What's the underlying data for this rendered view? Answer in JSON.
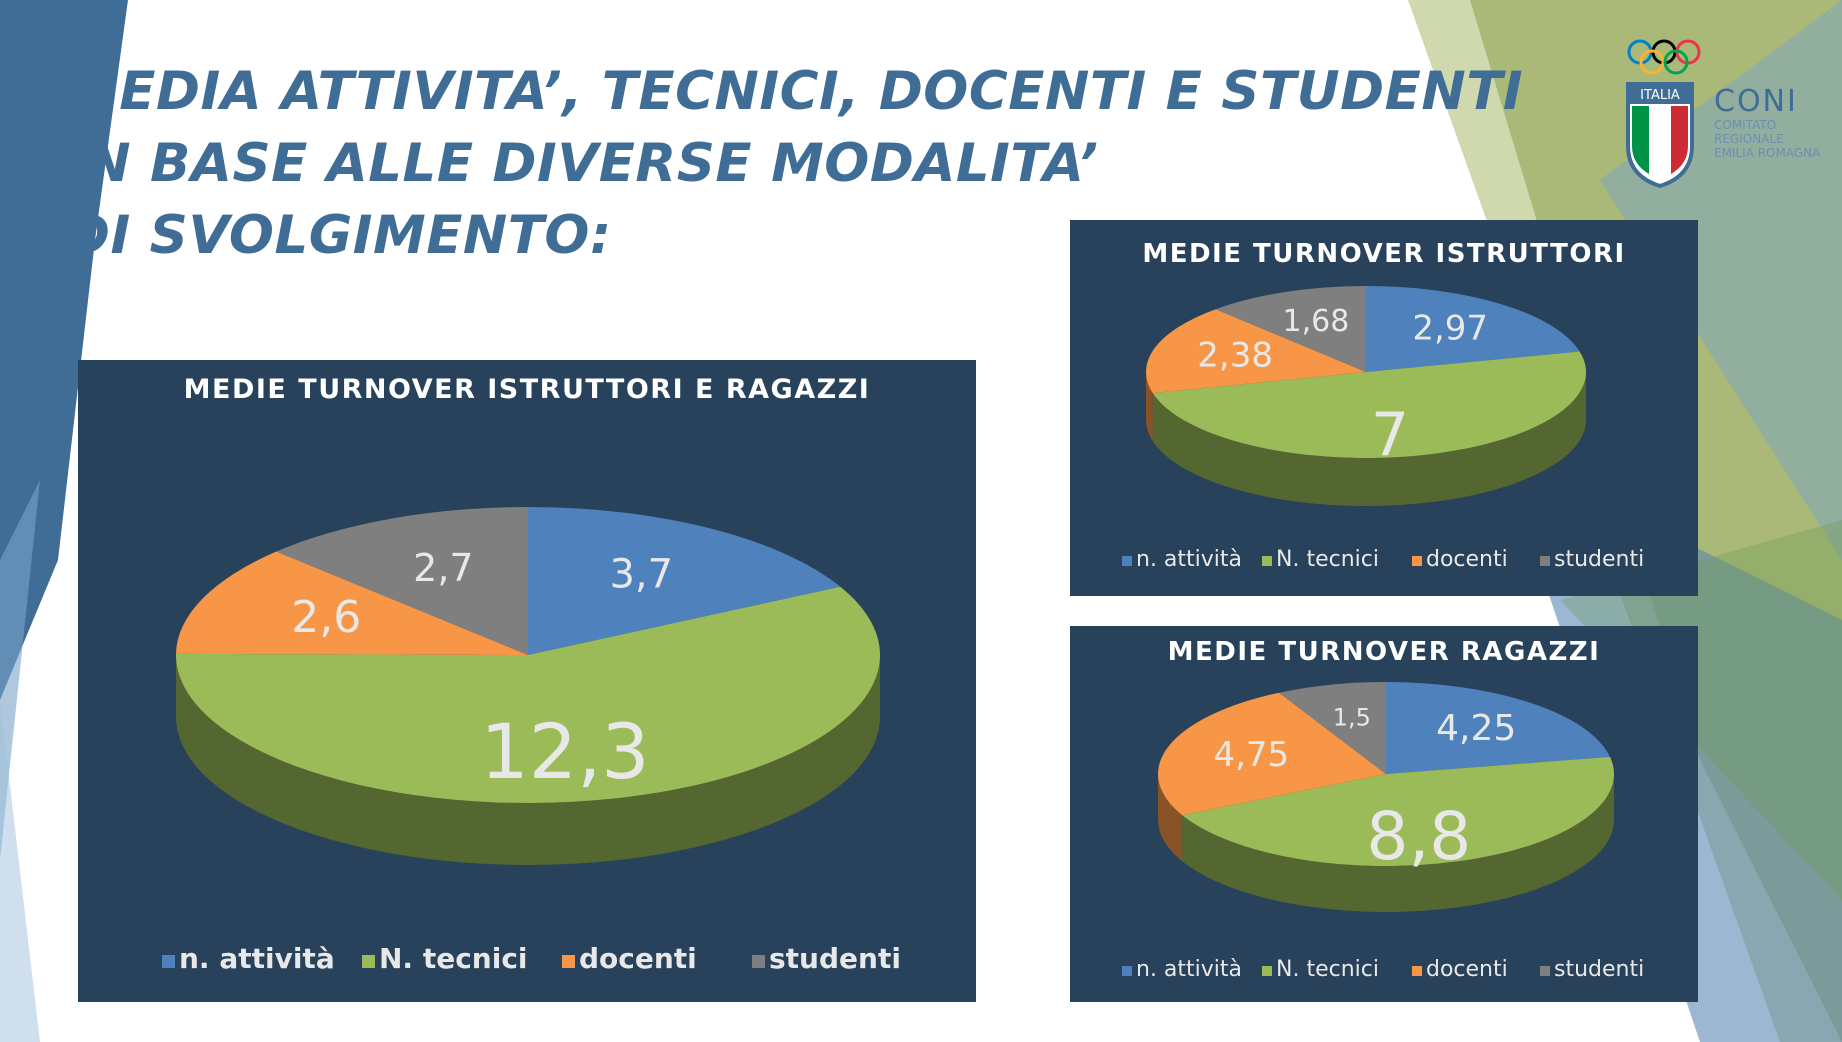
{
  "title_lines": [
    "MEDIA ATTIVITA’, TECNICI, DOCENTI E STUDENTI",
    "IN BASE ALLE DIVERSE MODALITA’",
    "DI SVOLGIMENTO:"
  ],
  "logo": {
    "badge": "ITALIA",
    "name": "CONI",
    "sub": [
      "COMITATO",
      "REGIONALE",
      "EMILIA ROMAGNA"
    ]
  },
  "colors": {
    "panel": "#27425a",
    "title": "#3f6d96",
    "attivita": "#4f81bd",
    "tecnici": "#9bbb59",
    "docenti": "#f79646",
    "studenti": "#7f7f7f"
  },
  "chart_data": [
    {
      "type": "pie",
      "title": "MEDIE TURNOVER ISTRUTTORI E RAGAZZI",
      "categories": [
        "n. attività",
        "N. tecnici",
        "docenti",
        "studenti"
      ],
      "values": [
        3.7,
        12.3,
        2.6,
        2.7
      ],
      "data_labels": [
        "3,7",
        "12,3",
        "2,6",
        "2,7"
      ],
      "legend": "bottom"
    },
    {
      "type": "pie",
      "title": "MEDIE TURNOVER ISTRUTTORI",
      "categories": [
        "n. attività",
        "N. tecnici",
        "docenti",
        "studenti"
      ],
      "values": [
        2.97,
        7,
        2.38,
        1.68
      ],
      "data_labels": [
        "2,97",
        "7",
        "2,38",
        "1,68"
      ],
      "legend": "bottom"
    },
    {
      "type": "pie",
      "title": "MEDIE TURNOVER RAGAZZI",
      "categories": [
        "n. attività",
        "N. tecnici",
        "docenti",
        "studenti"
      ],
      "values": [
        4.25,
        8.8,
        4.75,
        1.5
      ],
      "data_labels": [
        "4,25",
        "8,8",
        "4,75",
        "1,5"
      ],
      "legend": "bottom"
    }
  ]
}
